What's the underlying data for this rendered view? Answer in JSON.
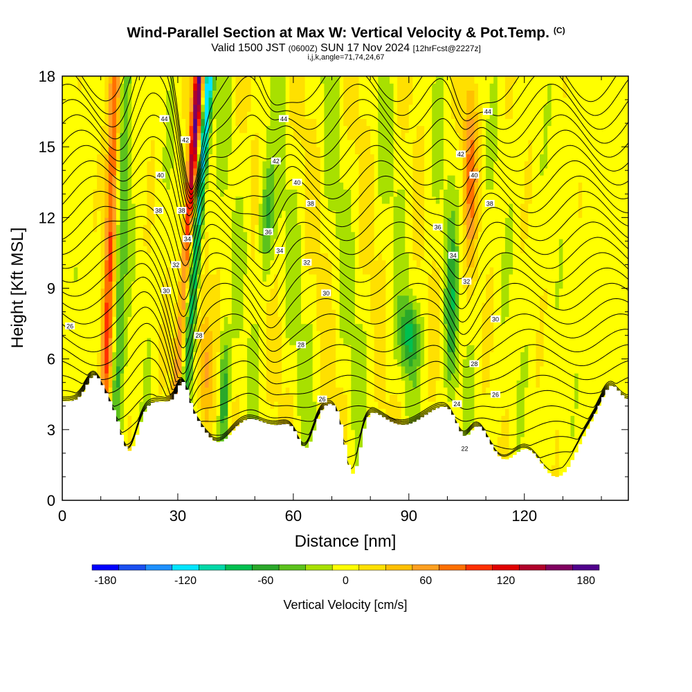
{
  "header": {
    "title": "Wind-Parallel Section at Max W: Vertical Velocity & Pot.Temp.",
    "copyright": "(C)",
    "valid_prefix": "Valid 1500 JST",
    "valid_utc": "(0600Z)",
    "valid_date": "SUN 17 Nov 2024",
    "forecast": "[12hrFcst@2227z]",
    "indices": "i,j,k,angle=71,74,24,67"
  },
  "colors": {
    "palette": [
      "#0000ff",
      "#1a4ff0",
      "#1e90ff",
      "#00e5ff",
      "#00d8a8",
      "#00c050",
      "#2aa82a",
      "#5cc21c",
      "#a8e000",
      "#ffff00",
      "#ffe000",
      "#ffc000",
      "#ffa020",
      "#ff7000",
      "#ff3000",
      "#e00000",
      "#b0002a",
      "#800060",
      "#50008c"
    ],
    "contour": "#000000",
    "terrain": "#ffffff"
  },
  "chart_data": {
    "type": "heatmap",
    "xlabel": "Distance [nm]",
    "ylabel": "Height [Kft MSL]",
    "xlim": [
      0,
      147
    ],
    "ylim": [
      0,
      18
    ],
    "x_ticks": [
      0,
      30,
      60,
      90,
      120
    ],
    "y_ticks": [
      0,
      3,
      6,
      9,
      12,
      15,
      18
    ],
    "colorbar": {
      "label": "Vertical Velocity [cm/s]",
      "min": -190,
      "max": 190,
      "step": 20,
      "tick_values": [
        -180,
        -120,
        -60,
        0,
        60,
        120,
        180
      ]
    },
    "theta_contours": [
      26,
      28,
      30,
      32,
      34,
      36,
      38,
      40,
      42,
      44
    ],
    "theta_labels": [
      {
        "text": "44",
        "x": 26.5,
        "y": 16.2
      },
      {
        "text": "44",
        "x": 57.5,
        "y": 16.2
      },
      {
        "text": "44",
        "x": 110.5,
        "y": 16.5
      },
      {
        "text": "42",
        "x": 32,
        "y": 15.3
      },
      {
        "text": "42",
        "x": 55.5,
        "y": 14.4
      },
      {
        "text": "42",
        "x": 103.5,
        "y": 14.7
      },
      {
        "text": "40",
        "x": 25.5,
        "y": 13.8
      },
      {
        "text": "40",
        "x": 61,
        "y": 13.5
      },
      {
        "text": "40",
        "x": 107,
        "y": 13.8
      },
      {
        "text": "38",
        "x": 25,
        "y": 12.3
      },
      {
        "text": "38",
        "x": 31,
        "y": 12.3
      },
      {
        "text": "38",
        "x": 64.5,
        "y": 12.6
      },
      {
        "text": "38",
        "x": 111,
        "y": 12.6
      },
      {
        "text": "36",
        "x": 53.5,
        "y": 11.4
      },
      {
        "text": "36",
        "x": 97.5,
        "y": 11.6
      },
      {
        "text": "34",
        "x": 32.5,
        "y": 11.1
      },
      {
        "text": "34",
        "x": 56.5,
        "y": 10.6
      },
      {
        "text": "34",
        "x": 101.5,
        "y": 10.4
      },
      {
        "text": "32",
        "x": 29.5,
        "y": 10.0
      },
      {
        "text": "32",
        "x": 63.5,
        "y": 10.1
      },
      {
        "text": "32",
        "x": 105,
        "y": 9.3
      },
      {
        "text": "30",
        "x": 27,
        "y": 8.9
      },
      {
        "text": "30",
        "x": 68.5,
        "y": 8.8
      },
      {
        "text": "30",
        "x": 112.5,
        "y": 7.7
      },
      {
        "text": "28",
        "x": 35.5,
        "y": 7.0
      },
      {
        "text": "28",
        "x": 62,
        "y": 6.6
      },
      {
        "text": "28",
        "x": 107,
        "y": 5.8
      },
      {
        "text": "26",
        "x": 2,
        "y": 7.4
      },
      {
        "text": "26",
        "x": 67.5,
        "y": 4.3
      },
      {
        "text": "26",
        "x": 112.5,
        "y": 4.5
      },
      {
        "text": "24",
        "x": 102.5,
        "y": 4.1
      },
      {
        "text": "22",
        "x": 104.5,
        "y": 2.2
      }
    ]
  }
}
